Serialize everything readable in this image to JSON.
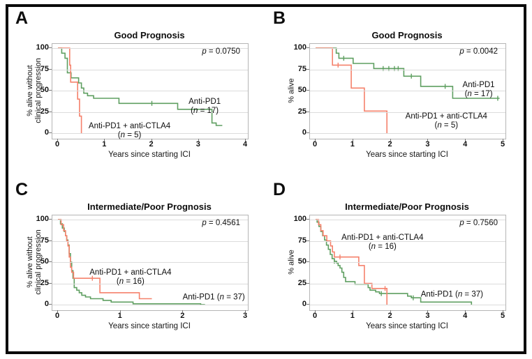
{
  "colors": {
    "anti_pd1": "#5f9f61",
    "anti_pd1_anti_ctla4": "#f5816b",
    "grid": "#dcdcdc",
    "plot_border": "#b5b5b5",
    "tick": "#777777",
    "text": "#111111",
    "frame": "#0a0a0a"
  },
  "chart_data": [
    {
      "panel": "A",
      "type": "line",
      "subtype": "kaplan-meier-step",
      "title": "Good Prognosis",
      "p_text": "p = 0.0750",
      "xlabel": "Years since starting ICI",
      "ylabel": "% alive without clinical progression",
      "ylabel_lines": [
        "% alive without",
        "clinical progression"
      ],
      "xlim": [
        0,
        4
      ],
      "ylim": [
        0,
        100
      ],
      "x_ticks": [
        0,
        1,
        2,
        3,
        4
      ],
      "y_ticks": [
        0,
        25,
        50,
        75,
        100
      ],
      "series": [
        {
          "name": "Anti-PD1",
          "n": 17,
          "color_key": "anti_pd1",
          "points": [
            [
              0,
              100
            ],
            [
              0.08,
              100
            ],
            [
              0.08,
              94
            ],
            [
              0.15,
              94
            ],
            [
              0.15,
              88
            ],
            [
              0.2,
              88
            ],
            [
              0.2,
              71
            ],
            [
              0.28,
              71
            ],
            [
              0.28,
              65
            ],
            [
              0.44,
              65
            ],
            [
              0.44,
              59
            ],
            [
              0.5,
              59
            ],
            [
              0.5,
              53
            ],
            [
              0.55,
              53
            ],
            [
              0.55,
              47
            ],
            [
              0.63,
              47
            ],
            [
              0.63,
              44
            ],
            [
              0.76,
              44
            ],
            [
              0.76,
              41
            ],
            [
              1.3,
              41
            ],
            [
              1.3,
              35
            ],
            [
              2.55,
              35
            ],
            [
              2.55,
              28
            ],
            [
              3.28,
              28
            ],
            [
              3.28,
              12
            ],
            [
              3.37,
              12
            ],
            [
              3.37,
              9
            ],
            [
              3.5,
              9
            ]
          ],
          "censor": [
            [
              2.0,
              35
            ]
          ]
        },
        {
          "name": "Anti-PD1 + anti-CTLA4",
          "n": 5,
          "color_key": "anti_pd1_anti_ctla4",
          "points": [
            [
              0,
              100
            ],
            [
              0.25,
              100
            ],
            [
              0.25,
              80
            ],
            [
              0.27,
              80
            ],
            [
              0.27,
              60
            ],
            [
              0.42,
              60
            ],
            [
              0.42,
              40
            ],
            [
              0.46,
              40
            ],
            [
              0.46,
              20
            ],
            [
              0.5,
              20
            ],
            [
              0.5,
              0
            ]
          ],
          "censor": []
        }
      ],
      "annotations": [
        {
          "lines": [
            "Anti-PD1",
            "(n = 17)"
          ],
          "x": 3.14,
          "y": 30
        },
        {
          "lines": [
            "Anti-PD1 + anti-CTLA4",
            "(n = 5)"
          ],
          "x": 1.54,
          "y": 2
        }
      ]
    },
    {
      "panel": "B",
      "type": "line",
      "subtype": "kaplan-meier-step",
      "title": "Good Prognosis",
      "p_text": "p = 0.0042",
      "xlabel": "Years since starting ICI",
      "ylabel": "% alive",
      "ylabel_lines": [
        "% alive"
      ],
      "xlim": [
        0,
        5
      ],
      "ylim": [
        0,
        100
      ],
      "x_ticks": [
        0,
        1,
        2,
        3,
        4,
        5
      ],
      "y_ticks": [
        0,
        25,
        50,
        75,
        100
      ],
      "series": [
        {
          "name": "Anti-PD1",
          "n": 17,
          "color_key": "anti_pd1",
          "points": [
            [
              0,
              100
            ],
            [
              0.55,
              100
            ],
            [
              0.55,
              94
            ],
            [
              0.62,
              94
            ],
            [
              0.62,
              88
            ],
            [
              1.0,
              88
            ],
            [
              1.0,
              82
            ],
            [
              1.55,
              82
            ],
            [
              1.55,
              76
            ],
            [
              2.35,
              76
            ],
            [
              2.35,
              67
            ],
            [
              2.8,
              67
            ],
            [
              2.8,
              55
            ],
            [
              3.65,
              55
            ],
            [
              3.65,
              41
            ],
            [
              4.9,
              41
            ]
          ],
          "censor": [
            [
              0.75,
              88
            ],
            [
              1.8,
              76
            ],
            [
              1.95,
              76
            ],
            [
              2.1,
              76
            ],
            [
              2.2,
              76
            ],
            [
              2.55,
              67
            ],
            [
              3.45,
              55
            ],
            [
              4.85,
              41
            ]
          ]
        },
        {
          "name": "Anti-PD1 + anti-CTLA4",
          "n": 5,
          "color_key": "anti_pd1_anti_ctla4",
          "points": [
            [
              0,
              100
            ],
            [
              0.45,
              100
            ],
            [
              0.45,
              80
            ],
            [
              0.95,
              80
            ],
            [
              0.95,
              53
            ],
            [
              1.3,
              53
            ],
            [
              1.3,
              26
            ],
            [
              1.9,
              26
            ],
            [
              1.9,
              0
            ]
          ],
          "censor": [
            [
              0.6,
              80
            ]
          ]
        }
      ],
      "annotations": [
        {
          "lines": [
            "Anti-PD1",
            "(n = 17)"
          ],
          "x": 4.36,
          "y": 50
        },
        {
          "lines": [
            "Anti-PD1 + anti-CTLA4",
            "(n = 5)"
          ],
          "x": 3.5,
          "y": 13
        }
      ]
    },
    {
      "panel": "C",
      "type": "line",
      "subtype": "kaplan-meier-step",
      "title": "Intermediate/Poor Prognosis",
      "p_text": "p = 0.4561",
      "xlabel": "Years since starting ICI",
      "ylabel": "% alive without clinical progression",
      "ylabel_lines": [
        "% alive without",
        "clinical progression"
      ],
      "xlim": [
        0,
        3
      ],
      "ylim": [
        0,
        100
      ],
      "x_ticks": [
        0,
        1,
        2,
        3
      ],
      "y_ticks": [
        0,
        25,
        50,
        75,
        100
      ],
      "series": [
        {
          "name": "Anti-PD1",
          "n": 37,
          "color_key": "anti_pd1",
          "points": [
            [
              0,
              100
            ],
            [
              0.04,
              100
            ],
            [
              0.04,
              95
            ],
            [
              0.07,
              95
            ],
            [
              0.07,
              90
            ],
            [
              0.1,
              90
            ],
            [
              0.1,
              86
            ],
            [
              0.12,
              86
            ],
            [
              0.12,
              81
            ],
            [
              0.14,
              81
            ],
            [
              0.14,
              76
            ],
            [
              0.16,
              76
            ],
            [
              0.16,
              70
            ],
            [
              0.18,
              70
            ],
            [
              0.18,
              60
            ],
            [
              0.2,
              60
            ],
            [
              0.2,
              50
            ],
            [
              0.22,
              50
            ],
            [
              0.22,
              40
            ],
            [
              0.24,
              40
            ],
            [
              0.24,
              31
            ],
            [
              0.26,
              31
            ],
            [
              0.26,
              20
            ],
            [
              0.3,
              20
            ],
            [
              0.3,
              17
            ],
            [
              0.34,
              17
            ],
            [
              0.34,
              14
            ],
            [
              0.38,
              14
            ],
            [
              0.38,
              11
            ],
            [
              0.44,
              11
            ],
            [
              0.44,
              9
            ],
            [
              0.52,
              9
            ],
            [
              0.52,
              7
            ],
            [
              0.72,
              7
            ],
            [
              0.72,
              5
            ],
            [
              0.85,
              5
            ],
            [
              0.85,
              3
            ],
            [
              1.2,
              3
            ],
            [
              1.2,
              1
            ],
            [
              2.28,
              1
            ],
            [
              2.28,
              0
            ],
            [
              2.35,
              0
            ]
          ],
          "censor": []
        },
        {
          "name": "Anti-PD1 + anti-CTLA4",
          "n": 16,
          "color_key": "anti_pd1_anti_ctla4",
          "points": [
            [
              0,
              100
            ],
            [
              0.05,
              100
            ],
            [
              0.05,
              94
            ],
            [
              0.09,
              94
            ],
            [
              0.09,
              87
            ],
            [
              0.12,
              87
            ],
            [
              0.12,
              81
            ],
            [
              0.14,
              81
            ],
            [
              0.14,
              75
            ],
            [
              0.16,
              75
            ],
            [
              0.16,
              69
            ],
            [
              0.18,
              69
            ],
            [
              0.18,
              56
            ],
            [
              0.2,
              56
            ],
            [
              0.2,
              44
            ],
            [
              0.22,
              44
            ],
            [
              0.22,
              38
            ],
            [
              0.25,
              38
            ],
            [
              0.25,
              31
            ],
            [
              0.67,
              31
            ],
            [
              0.67,
              14
            ],
            [
              1.3,
              14
            ],
            [
              1.3,
              7
            ],
            [
              1.5,
              7
            ]
          ],
          "censor": [
            [
              0.55,
              31
            ]
          ]
        }
      ],
      "annotations": [
        {
          "lines": [
            "Anti-PD1 + anti-CTLA4",
            "(n = 16)"
          ],
          "x": 1.17,
          "y": 31
        },
        {
          "lines": [
            "Anti-PD1 (n = 37)"
          ],
          "x": 2.5,
          "y": 7
        }
      ]
    },
    {
      "panel": "D",
      "type": "line",
      "subtype": "kaplan-meier-step",
      "title": "Intermediate/Poor Prognosis",
      "p_text": "p = 0.7560",
      "xlabel": "Years since starting ICI",
      "ylabel": "% alive",
      "ylabel_lines": [
        "% alive"
      ],
      "xlim": [
        0,
        5
      ],
      "ylim": [
        0,
        100
      ],
      "x_ticks": [
        0,
        1,
        2,
        3,
        4,
        5
      ],
      "y_ticks": [
        0,
        25,
        50,
        75,
        100
      ],
      "series": [
        {
          "name": "Anti-PD1",
          "n": 37,
          "color_key": "anti_pd1",
          "points": [
            [
              0,
              100
            ],
            [
              0.04,
              100
            ],
            [
              0.04,
              97
            ],
            [
              0.09,
              97
            ],
            [
              0.09,
              92
            ],
            [
              0.14,
              92
            ],
            [
              0.14,
              86
            ],
            [
              0.19,
              86
            ],
            [
              0.19,
              81
            ],
            [
              0.24,
              81
            ],
            [
              0.24,
              76
            ],
            [
              0.29,
              76
            ],
            [
              0.29,
              70
            ],
            [
              0.34,
              70
            ],
            [
              0.34,
              65
            ],
            [
              0.39,
              65
            ],
            [
              0.39,
              59
            ],
            [
              0.44,
              59
            ],
            [
              0.44,
              54
            ],
            [
              0.5,
              54
            ],
            [
              0.5,
              51
            ],
            [
              0.56,
              51
            ],
            [
              0.56,
              49
            ],
            [
              0.6,
              49
            ],
            [
              0.6,
              46
            ],
            [
              0.65,
              46
            ],
            [
              0.65,
              43
            ],
            [
              0.7,
              43
            ],
            [
              0.7,
              38
            ],
            [
              0.75,
              38
            ],
            [
              0.75,
              32
            ],
            [
              0.8,
              32
            ],
            [
              0.8,
              27
            ],
            [
              1.05,
              27
            ],
            [
              1.05,
              24
            ],
            [
              1.4,
              24
            ],
            [
              1.4,
              20
            ],
            [
              1.45,
              20
            ],
            [
              1.45,
              17
            ],
            [
              1.6,
              17
            ],
            [
              1.6,
              15
            ],
            [
              1.7,
              15
            ],
            [
              1.7,
              13
            ],
            [
              2.45,
              13
            ],
            [
              2.45,
              10
            ],
            [
              2.55,
              10
            ],
            [
              2.55,
              8
            ],
            [
              2.8,
              8
            ],
            [
              2.8,
              3
            ],
            [
              4.15,
              3
            ],
            [
              4.15,
              0
            ]
          ],
          "censor": [
            [
              0.5,
              51
            ],
            [
              1.75,
              13
            ],
            [
              2.6,
              8
            ]
          ]
        },
        {
          "name": "Anti-PD1 + anti-CTLA4",
          "n": 16,
          "color_key": "anti_pd1_anti_ctla4",
          "points": [
            [
              0,
              100
            ],
            [
              0.08,
              100
            ],
            [
              0.08,
              94
            ],
            [
              0.14,
              94
            ],
            [
              0.14,
              87
            ],
            [
              0.2,
              87
            ],
            [
              0.2,
              81
            ],
            [
              0.3,
              81
            ],
            [
              0.3,
              75
            ],
            [
              0.4,
              75
            ],
            [
              0.4,
              69
            ],
            [
              0.45,
              69
            ],
            [
              0.45,
              62
            ],
            [
              0.5,
              62
            ],
            [
              0.5,
              56
            ],
            [
              1.15,
              56
            ],
            [
              1.15,
              46
            ],
            [
              1.3,
              46
            ],
            [
              1.3,
              25
            ],
            [
              1.5,
              25
            ],
            [
              1.5,
              19
            ],
            [
              1.9,
              19
            ],
            [
              1.9,
              0
            ]
          ],
          "censor": [
            [
              0.65,
              56
            ],
            [
              1.85,
              19
            ]
          ]
        }
      ],
      "annotations": [
        {
          "lines": [
            "Anti-PD1 + anti-CTLA4",
            "(n = 16)"
          ],
          "x": 1.8,
          "y": 72
        },
        {
          "lines": [
            "Anti-PD1 (n = 37)"
          ],
          "x": 3.65,
          "y": 11
        }
      ]
    }
  ]
}
